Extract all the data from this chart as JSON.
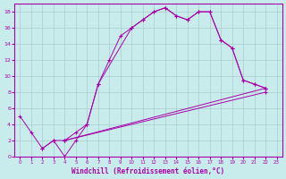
{
  "xlabel": "Windchill (Refroidissement éolien,°C)",
  "bg_color": "#c8ecec",
  "line_color": "#aa00aa",
  "grid_color": "#aacccc",
  "xlim": [
    -0.5,
    23.5
  ],
  "ylim": [
    0,
    19
  ],
  "xticks": [
    0,
    1,
    2,
    3,
    4,
    5,
    6,
    7,
    8,
    9,
    10,
    11,
    12,
    13,
    14,
    15,
    16,
    17,
    18,
    19,
    20,
    21,
    22,
    23
  ],
  "yticks": [
    0,
    2,
    4,
    6,
    8,
    10,
    12,
    14,
    16,
    18
  ],
  "curve1_x": [
    0,
    1,
    2,
    3,
    4,
    5,
    6,
    7,
    10,
    11,
    12,
    13,
    14,
    15,
    16,
    17,
    18,
    19,
    20,
    21,
    22
  ],
  "curve1_y": [
    5,
    3,
    1,
    2,
    0,
    2,
    4,
    9,
    16,
    17,
    18,
    18.5,
    17.5,
    17,
    18,
    18,
    14.5,
    13.5,
    9.5,
    9,
    8.5
  ],
  "curve2_x": [
    2,
    3,
    4,
    5,
    6,
    7,
    8,
    9,
    10,
    11,
    12,
    13,
    14,
    15,
    16,
    17,
    18,
    19,
    20,
    21,
    22
  ],
  "curve2_y": [
    1,
    2,
    2,
    3,
    4,
    9,
    12,
    15,
    16,
    17,
    18,
    18.5,
    17.5,
    17,
    18,
    18,
    14.5,
    13.5,
    9.5,
    9,
    8.5
  ],
  "line3_x": [
    4,
    22
  ],
  "line3_y": [
    2,
    8.5
  ],
  "line4_x": [
    4,
    22
  ],
  "line4_y": [
    2,
    8.0
  ]
}
